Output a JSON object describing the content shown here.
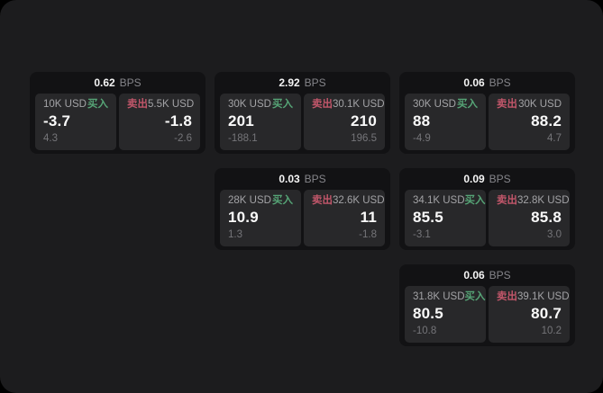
{
  "bps_unit": "BPS",
  "colors": {
    "background": "#000000",
    "panel": "#1c1c1e",
    "card": "#121214",
    "tile": "#28282a",
    "buy_green": "#56a476",
    "sell_red": "#c1566a"
  },
  "cards": [
    {
      "row": 1,
      "col": 1,
      "bps": "0.62",
      "buy": {
        "amount": "10K USD",
        "side": "买入",
        "value": "-3.7",
        "sub": "4.3"
      },
      "sell": {
        "side": "卖出",
        "amount": "5.5K USD",
        "value": "-1.8",
        "sub": "-2.6"
      }
    },
    {
      "row": 1,
      "col": 2,
      "bps": "2.92",
      "buy": {
        "amount": "30K USD",
        "side": "买入",
        "value": "201",
        "sub": "-188.1"
      },
      "sell": {
        "side": "卖出",
        "amount": "30.1K USD",
        "value": "210",
        "sub": "196.5"
      }
    },
    {
      "row": 1,
      "col": 3,
      "bps": "0.06",
      "buy": {
        "amount": "30K USD",
        "side": "买入",
        "value": "88",
        "sub": "-4.9"
      },
      "sell": {
        "side": "卖出",
        "amount": "30K USD",
        "value": "88.2",
        "sub": "4.7"
      }
    },
    {
      "row": 2,
      "col": 2,
      "bps": "0.03",
      "buy": {
        "amount": "28K USD",
        "side": "买入",
        "value": "10.9",
        "sub": "1.3"
      },
      "sell": {
        "side": "卖出",
        "amount": "32.6K USD",
        "value": "11",
        "sub": "-1.8"
      }
    },
    {
      "row": 2,
      "col": 3,
      "bps": "0.09",
      "buy": {
        "amount": "34.1K USD",
        "side": "买入",
        "value": "85.5",
        "sub": "-3.1"
      },
      "sell": {
        "side": "卖出",
        "amount": "32.8K USD",
        "value": "85.8",
        "sub": "3.0"
      }
    },
    {
      "row": 3,
      "col": 3,
      "bps": "0.06",
      "buy": {
        "amount": "31.8K USD",
        "side": "买入",
        "value": "80.5",
        "sub": "-10.8"
      },
      "sell": {
        "side": "卖出",
        "amount": "39.1K USD",
        "value": "80.7",
        "sub": "10.2"
      }
    }
  ]
}
